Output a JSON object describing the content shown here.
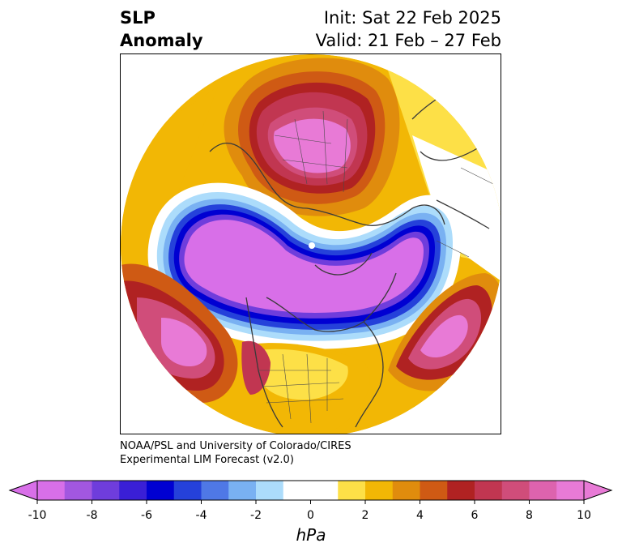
{
  "title": {
    "left_line1": "SLP",
    "left_line2": "Anomaly",
    "right_line1": "Init: Sat 22 Feb 2025",
    "right_line2": "Valid: 21 Feb – 27 Feb"
  },
  "credit": {
    "line1": "NOAA/PSL and University of Colorado/CIRES",
    "line2": "Experimental LIM Forecast (v2.0)"
  },
  "colorbar": {
    "unit": "hPa",
    "ticks": [
      "-10",
      "-8",
      "-6",
      "-4",
      "-2",
      "0",
      "2",
      "4",
      "6",
      "8",
      "10"
    ],
    "levels": [
      -10,
      -9,
      -8,
      -7,
      -6,
      -5,
      -4,
      -3,
      -2,
      -1,
      1,
      2,
      3,
      4,
      5,
      6,
      7,
      8,
      9,
      10
    ],
    "colors": [
      "#d86fe8",
      "#a257e0",
      "#6f3ddc",
      "#3a1fd6",
      "#0000d2",
      "#2541da",
      "#4f78e6",
      "#79b1f2",
      "#acdcfb",
      "#ffffff",
      "#ffffff",
      "#fde047",
      "#f2b705",
      "#e08c0d",
      "#cf5a14",
      "#b02222",
      "#c13651",
      "#d04d7a",
      "#dd63ae",
      "#e87ad6"
    ],
    "under_color": "#d86fe8",
    "over_color": "#e87ad6"
  },
  "map": {
    "projection": "north-polar-stereographic",
    "field": "sea level pressure anomaly",
    "colors": {
      "neg_core": "#d86fe8",
      "neg_1": "#a257e0",
      "neg_2": "#3a1fd6",
      "neg_3": "#0000d2",
      "neg_4": "#79b1f2",
      "pos_1": "#fde047",
      "pos_2": "#f2b705",
      "pos_3": "#e08c0d",
      "pos_4": "#cf5a14",
      "pos_5": "#b02222",
      "pos_6": "#d04d7a",
      "pos_core": "#e87ad6",
      "coast": "#3a3a3a"
    }
  }
}
